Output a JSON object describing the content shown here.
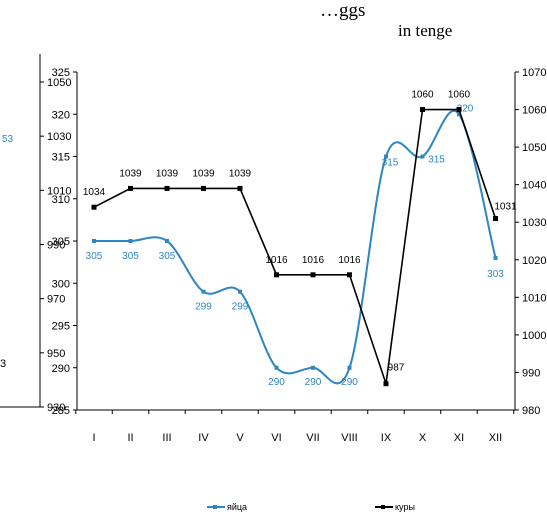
{
  "chart_data": {
    "type": "line",
    "title": "…ggs",
    "unit_note": "in tenge",
    "categories": [
      "I",
      "II",
      "III",
      "IV",
      "V",
      "VI",
      "VII",
      "VIII",
      "IX",
      "X",
      "XI",
      "XII"
    ],
    "series": [
      {
        "name": "яйца",
        "axis": "left-inner",
        "color": "#2e86c1",
        "smooth": true,
        "values": [
          305,
          305,
          305,
          299,
          299,
          290,
          290,
          290,
          315,
          315,
          320,
          303
        ],
        "labels": [
          "305",
          "305",
          "305",
          "299",
          "299",
          "290",
          "290",
          "290",
          "315",
          "315",
          "320",
          "303"
        ]
      },
      {
        "name": "куры",
        "axis": "right",
        "color": "#000000",
        "smooth": false,
        "values": [
          1034,
          1039,
          1039,
          1039,
          1039,
          1016,
          1016,
          1016,
          987,
          1060,
          1060,
          1031
        ],
        "labels": [
          "1034",
          "1039",
          "1039",
          "1039",
          "1039",
          "1016",
          "1016",
          "1016",
          "987",
          "1060",
          "1060",
          "1031"
        ]
      }
    ],
    "axes": {
      "left_inner": {
        "ticks": [
          285,
          290,
          295,
          300,
          305,
          310,
          315,
          320,
          325
        ],
        "range": [
          285,
          325
        ]
      },
      "left_outer": {
        "ticks": [
          930,
          950,
          970,
          990,
          1010,
          1030,
          1050
        ]
      },
      "right": {
        "ticks": [
          980,
          990,
          1000,
          1010,
          1020,
          1030,
          1040,
          1050,
          1060,
          1070
        ],
        "range": [
          980,
          1070
        ]
      }
    },
    "partial_labels": {
      "outer_blue_fragment": "53",
      "outer_far_left_fragment": "3"
    },
    "grid": false,
    "legend_position": "bottom"
  }
}
